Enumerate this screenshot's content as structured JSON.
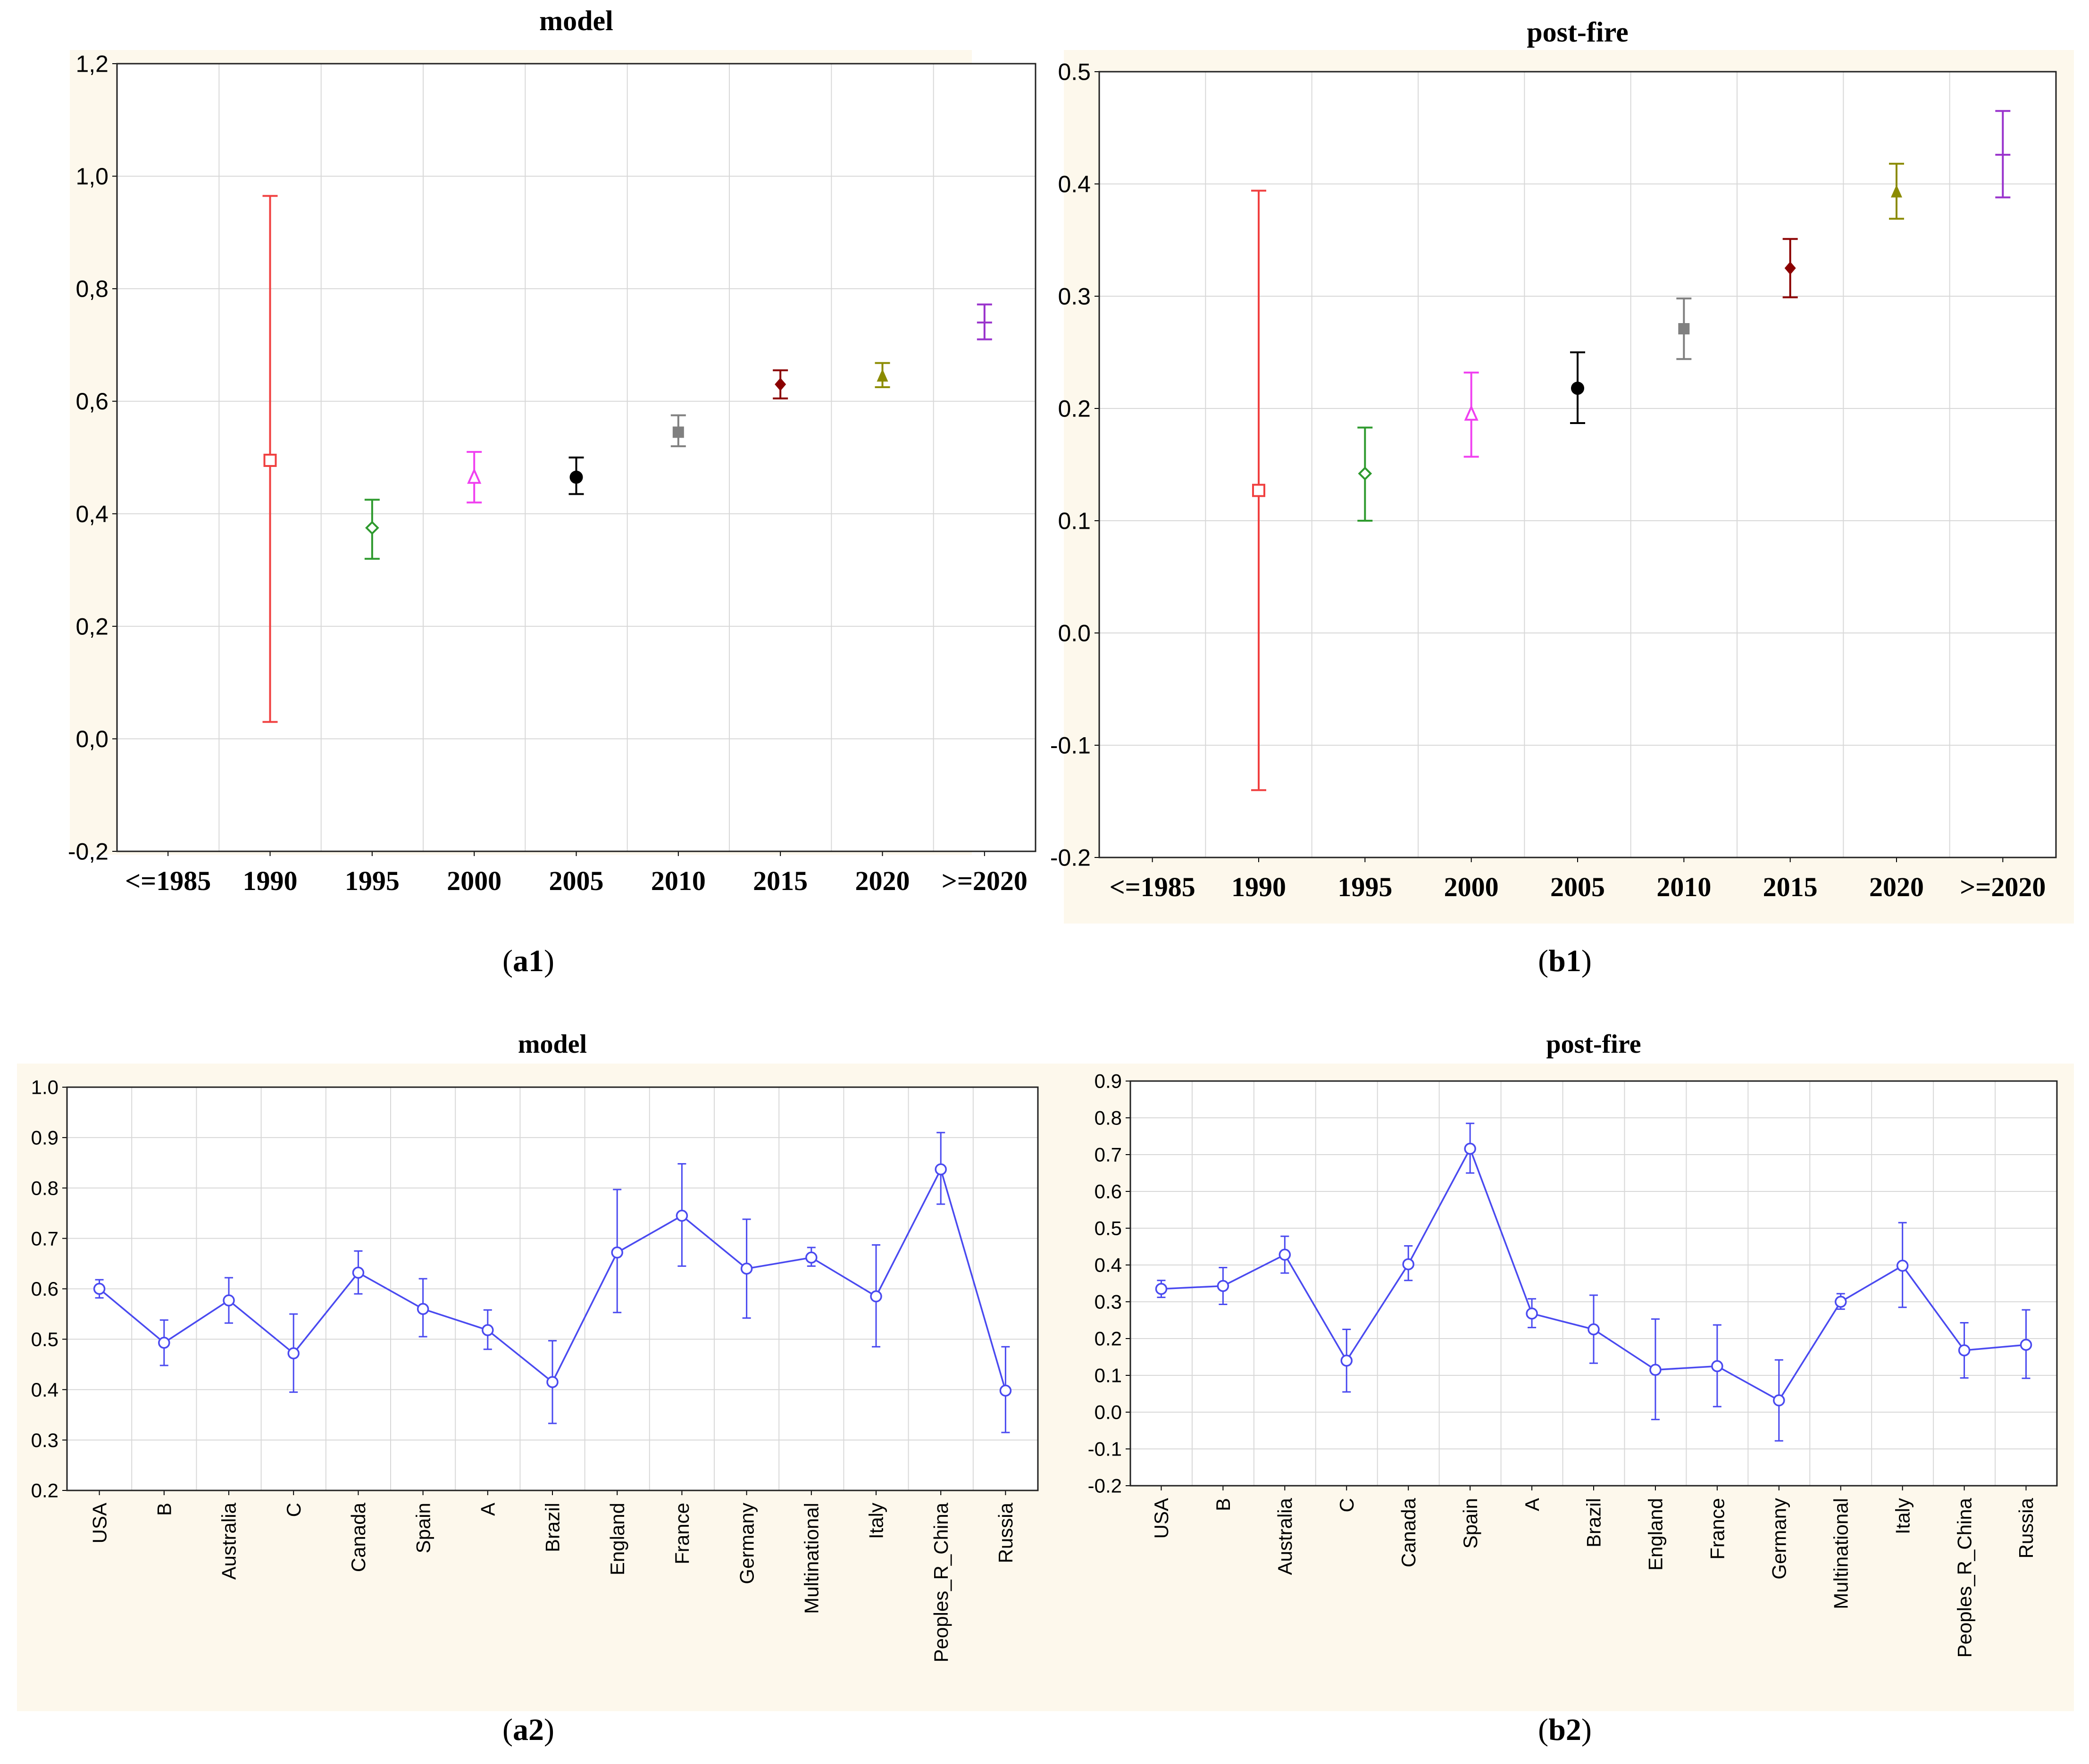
{
  "captions": {
    "a1": {
      "prefix": "(",
      "letter": "a1",
      "suffix": ")"
    },
    "b1": {
      "prefix": "(",
      "letter": "b1",
      "suffix": ")"
    },
    "a2": {
      "prefix": "(",
      "letter": "a2",
      "suffix": ")"
    },
    "b2": {
      "prefix": "(",
      "letter": "b2",
      "suffix": ")"
    }
  },
  "colors": {
    "panel_bg": "#fdf8ec",
    "line_series": "#4a4af0",
    "grid": "#d8d8d8"
  },
  "chart_data": [
    {
      "id": "a1",
      "type": "scatter",
      "title": "model",
      "categories": [
        "<=1985",
        "1990",
        "1995",
        "2000",
        "2005",
        "2010",
        "2015",
        "2020",
        ">=2020"
      ],
      "tick_format": "comma1",
      "ylim": [
        -0.2,
        1.2
      ],
      "yticks": [
        -0.2,
        0.0,
        0.2,
        0.4,
        0.6,
        0.8,
        1.0,
        1.2
      ],
      "grid": true,
      "points": [
        {
          "category": "1990",
          "value": 0.495,
          "lower": 0.03,
          "upper": 0.965,
          "marker": "square-open",
          "color": "#f04040"
        },
        {
          "category": "1995",
          "value": 0.375,
          "lower": 0.32,
          "upper": 0.425,
          "marker": "diamond-open",
          "color": "#2e9a2e"
        },
        {
          "category": "2000",
          "value": 0.465,
          "lower": 0.42,
          "upper": 0.51,
          "marker": "triangle-open",
          "color": "#f040f0"
        },
        {
          "category": "2005",
          "value": 0.465,
          "lower": 0.435,
          "upper": 0.5,
          "marker": "circle-filled",
          "color": "#000000"
        },
        {
          "category": "2010",
          "value": 0.545,
          "lower": 0.52,
          "upper": 0.575,
          "marker": "square-filled",
          "color": "#808080"
        },
        {
          "category": "2015",
          "value": 0.63,
          "lower": 0.605,
          "upper": 0.655,
          "marker": "diamond-filled",
          "color": "#8b0000"
        },
        {
          "category": "2020",
          "value": 0.645,
          "lower": 0.625,
          "upper": 0.668,
          "marker": "triangle-filled",
          "color": "#8b8b00"
        },
        {
          "category": ">=2020",
          "value": 0.74,
          "lower": 0.71,
          "upper": 0.772,
          "marker": "dash",
          "color": "#9932cc"
        }
      ]
    },
    {
      "id": "b1",
      "type": "scatter",
      "title": "post-fire",
      "categories": [
        "<=1985",
        "1990",
        "1995",
        "2000",
        "2005",
        "2010",
        "2015",
        "2020",
        ">=2020"
      ],
      "tick_format": "dot1",
      "ylim": [
        -0.2,
        0.5
      ],
      "yticks": [
        -0.2,
        -0.1,
        0.0,
        0.1,
        0.2,
        0.3,
        0.4,
        0.5
      ],
      "grid": true,
      "points": [
        {
          "category": "1990",
          "value": 0.127,
          "lower": -0.14,
          "upper": 0.394,
          "marker": "square-open",
          "color": "#f04040"
        },
        {
          "category": "1995",
          "value": 0.142,
          "lower": 0.1,
          "upper": 0.183,
          "marker": "diamond-open",
          "color": "#2e9a2e"
        },
        {
          "category": "2000",
          "value": 0.195,
          "lower": 0.157,
          "upper": 0.232,
          "marker": "triangle-open",
          "color": "#f040f0"
        },
        {
          "category": "2005",
          "value": 0.218,
          "lower": 0.187,
          "upper": 0.25,
          "marker": "circle-filled",
          "color": "#000000"
        },
        {
          "category": "2010",
          "value": 0.271,
          "lower": 0.244,
          "upper": 0.298,
          "marker": "square-filled",
          "color": "#808080"
        },
        {
          "category": "2015",
          "value": 0.325,
          "lower": 0.299,
          "upper": 0.351,
          "marker": "diamond-filled",
          "color": "#8b0000"
        },
        {
          "category": "2020",
          "value": 0.393,
          "lower": 0.369,
          "upper": 0.418,
          "marker": "triangle-filled",
          "color": "#8b8b00"
        },
        {
          "category": ">=2020",
          "value": 0.426,
          "lower": 0.388,
          "upper": 0.465,
          "marker": "dash",
          "color": "#9932cc"
        }
      ]
    },
    {
      "id": "a2",
      "type": "line",
      "title": "model",
      "tick_format": "dot1",
      "categories": [
        "USA",
        "B",
        "Australia",
        "C",
        "Canada",
        "Spain",
        "A",
        "Brazil",
        "England",
        "France",
        "Germany",
        "Multinational",
        "Italy",
        "Peoples_R_China",
        "Russia"
      ],
      "values": [
        0.6,
        0.493,
        0.577,
        0.472,
        0.632,
        0.56,
        0.518,
        0.415,
        0.672,
        0.745,
        0.64,
        0.662,
        0.585,
        0.837,
        0.398
      ],
      "lower": [
        0.582,
        0.448,
        0.532,
        0.395,
        0.59,
        0.505,
        0.48,
        0.333,
        0.553,
        0.645,
        0.542,
        0.645,
        0.485,
        0.768,
        0.315
      ],
      "upper": [
        0.618,
        0.538,
        0.622,
        0.55,
        0.675,
        0.62,
        0.558,
        0.497,
        0.797,
        0.848,
        0.738,
        0.682,
        0.687,
        0.91,
        0.485
      ],
      "ylim": [
        0.2,
        1.0
      ],
      "yticks": [
        0.2,
        0.3,
        0.4,
        0.5,
        0.6,
        0.7,
        0.8,
        0.9,
        1.0
      ],
      "grid": true
    },
    {
      "id": "b2",
      "type": "line",
      "title": "post-fire",
      "tick_format": "dot1",
      "categories": [
        "USA",
        "B",
        "Australia",
        "C",
        "Canada",
        "Spain",
        "A",
        "Brazil",
        "England",
        "France",
        "Germany",
        "Multinational",
        "Italy",
        "Peoples_R_China",
        "Russia"
      ],
      "values": [
        0.335,
        0.343,
        0.428,
        0.14,
        0.402,
        0.716,
        0.268,
        0.225,
        0.115,
        0.125,
        0.032,
        0.3,
        0.398,
        0.168,
        0.183
      ],
      "lower": [
        0.312,
        0.293,
        0.378,
        0.055,
        0.358,
        0.65,
        0.23,
        0.133,
        -0.02,
        0.015,
        -0.078,
        0.28,
        0.285,
        0.093,
        0.092
      ],
      "upper": [
        0.358,
        0.393,
        0.478,
        0.225,
        0.452,
        0.785,
        0.308,
        0.318,
        0.253,
        0.237,
        0.142,
        0.322,
        0.515,
        0.243,
        0.278
      ],
      "ylim": [
        -0.2,
        0.9
      ],
      "yticks": [
        -0.2,
        -0.1,
        0.0,
        0.1,
        0.2,
        0.3,
        0.4,
        0.5,
        0.6,
        0.7,
        0.8,
        0.9
      ],
      "grid": true
    }
  ]
}
